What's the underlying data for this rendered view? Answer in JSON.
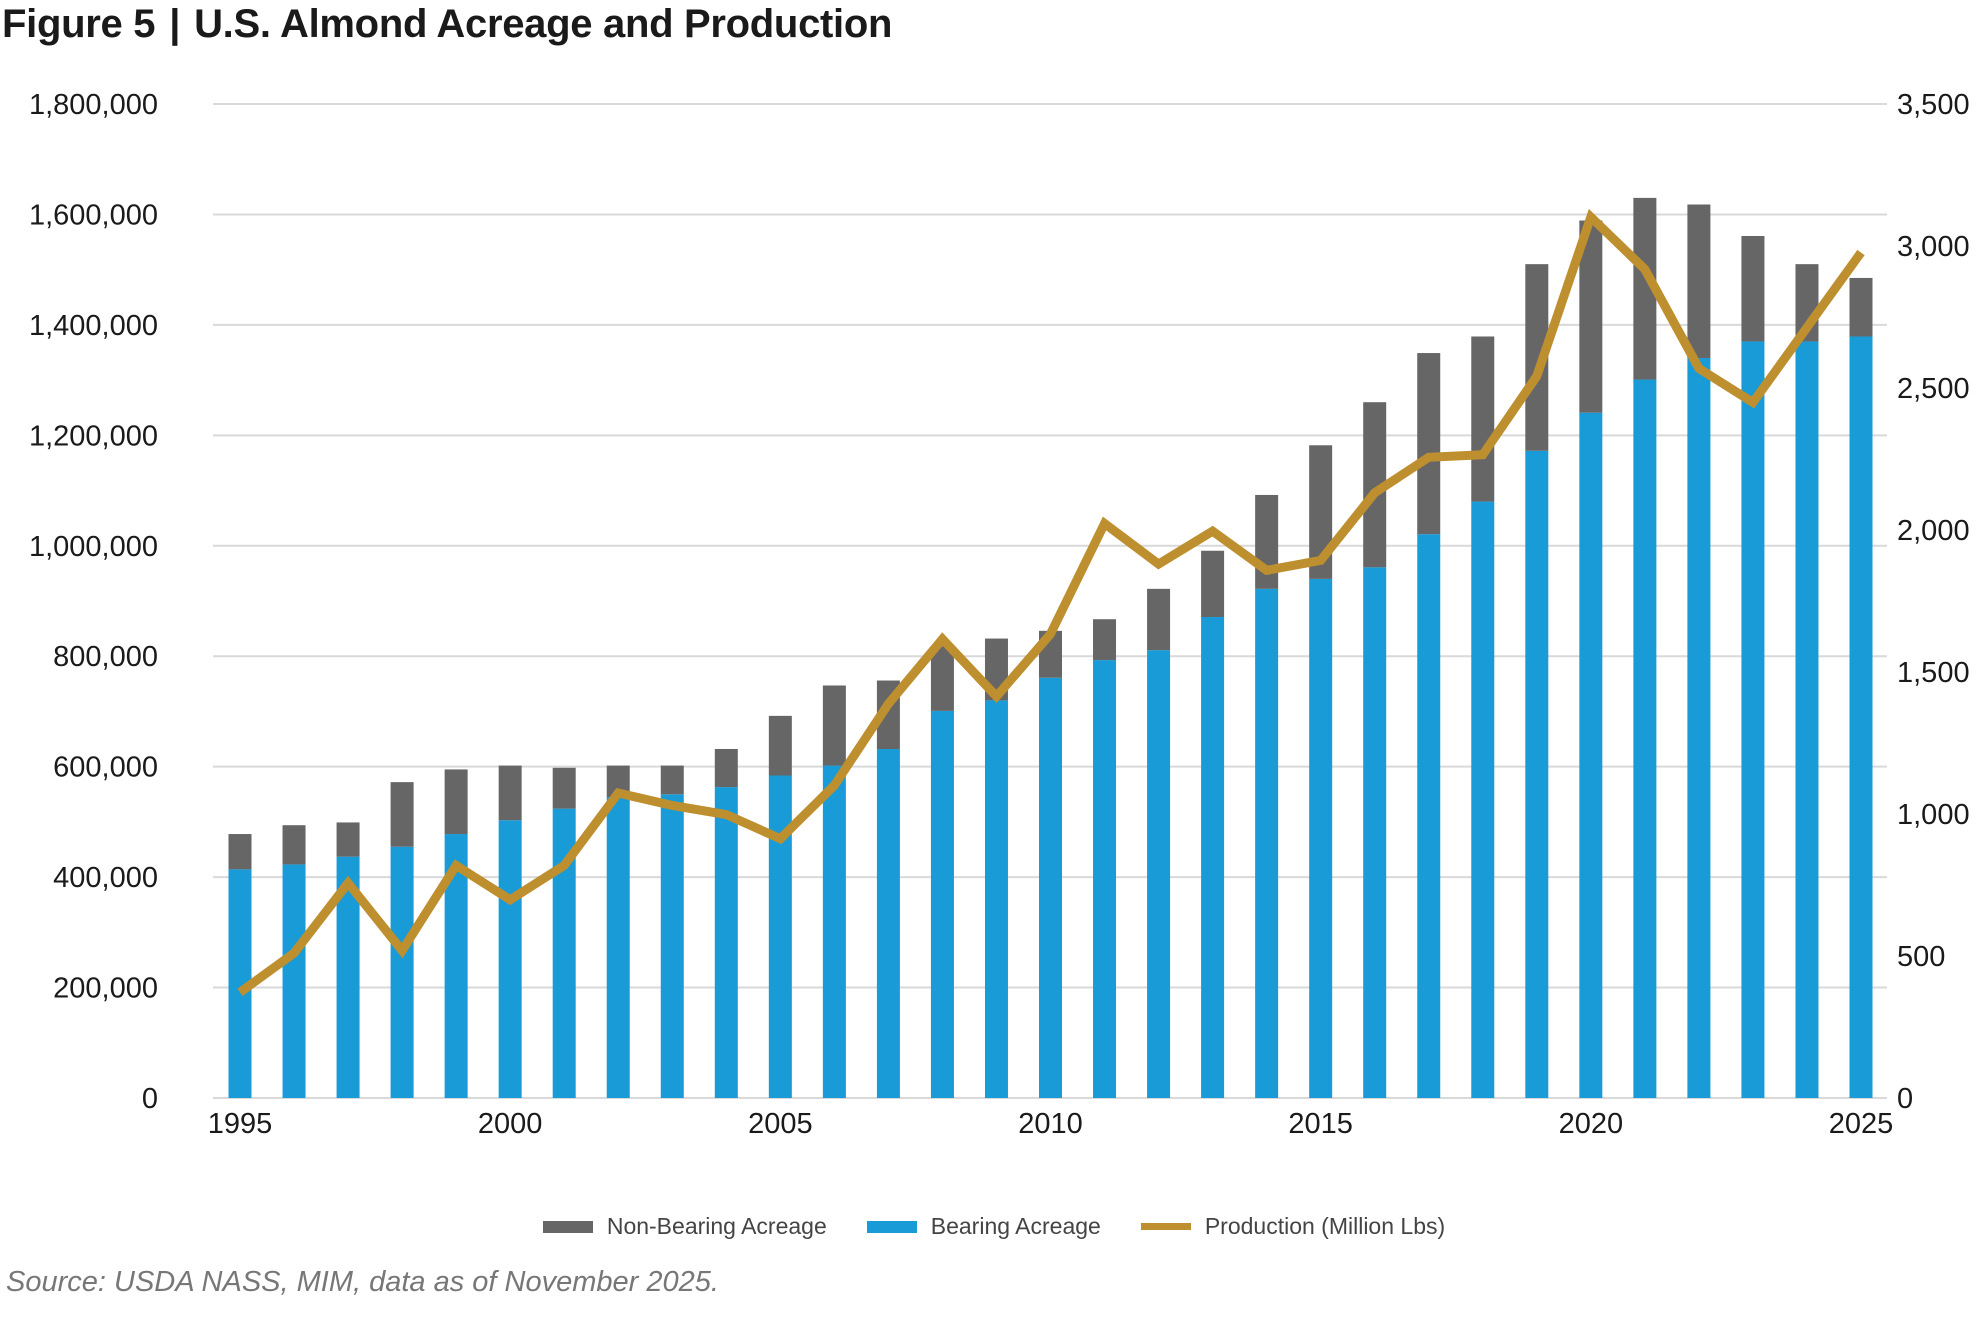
{
  "title": {
    "figure": "Figure 5",
    "separator": "|",
    "text": "U.S. Almond Acreage and Production"
  },
  "source": "Source: USDA NASS, MIM, data as of November 2025.",
  "colors": {
    "non_bearing": "#666666",
    "bearing": "#189BD7",
    "production": "#BE8F2E",
    "grid": "#d9d9d9"
  },
  "chart_data": {
    "type": "bar",
    "title": "U.S. Almond Acreage and Production",
    "stacked": true,
    "grid": true,
    "legend_position": "bottom",
    "x": [
      1995,
      1996,
      1997,
      1998,
      1999,
      2000,
      2001,
      2002,
      2003,
      2004,
      2005,
      2006,
      2007,
      2008,
      2009,
      2010,
      2011,
      2012,
      2013,
      2014,
      2015,
      2016,
      2017,
      2018,
      2019,
      2020,
      2021,
      2022,
      2023,
      2024,
      2025
    ],
    "x_tick_labels": [
      "1995",
      "2000",
      "2005",
      "2010",
      "2015",
      "2020",
      "2025"
    ],
    "y_left": {
      "lim": [
        0,
        1800000
      ],
      "tick_labels": [
        "0",
        "200,000",
        "400,000",
        "600,000",
        "800,000",
        "1,000,000",
        "1,200,000",
        "1,400,000",
        "1,600,000",
        "1,800,000"
      ]
    },
    "y_right": {
      "lim": [
        0,
        3500
      ],
      "tick_labels": [
        "0",
        "500",
        "1,000",
        "1,500",
        "2,000",
        "2,500",
        "3,000",
        "3,500"
      ]
    },
    "series": [
      {
        "name": "Non-Bearing Acreage",
        "type": "bar",
        "axis": "left",
        "values": [
          64000,
          71000,
          62000,
          117000,
          117000,
          99000,
          74000,
          57000,
          52000,
          69000,
          108000,
          145000,
          124000,
          117000,
          112000,
          85000,
          74000,
          111000,
          120000,
          170000,
          242000,
          299000,
          328000,
          299000,
          338000,
          348000,
          329000,
          278000,
          191000,
          140000,
          106000
        ]
      },
      {
        "name": "Bearing Acreage",
        "type": "bar",
        "axis": "left",
        "values": [
          414000,
          423000,
          437000,
          455000,
          478000,
          503000,
          524000,
          545000,
          550000,
          563000,
          584000,
          602000,
          632000,
          701000,
          720000,
          761000,
          793000,
          811000,
          871000,
          922000,
          940000,
          961000,
          1021000,
          1080000,
          1172000,
          1241000,
          1301000,
          1340000,
          1370000,
          1370000,
          1379000
        ]
      },
      {
        "name": "Production (Million Lbs)",
        "type": "line",
        "axis": "right",
        "values": [
          372,
          510,
          757,
          519,
          819,
          698,
          819,
          1074,
          1030,
          998,
          913,
          1101,
          1388,
          1616,
          1414,
          1634,
          2023,
          1880,
          1996,
          1858,
          1893,
          2131,
          2256,
          2265,
          2542,
          3102,
          2918,
          2569,
          2449,
          2713,
          2977
        ]
      }
    ]
  }
}
